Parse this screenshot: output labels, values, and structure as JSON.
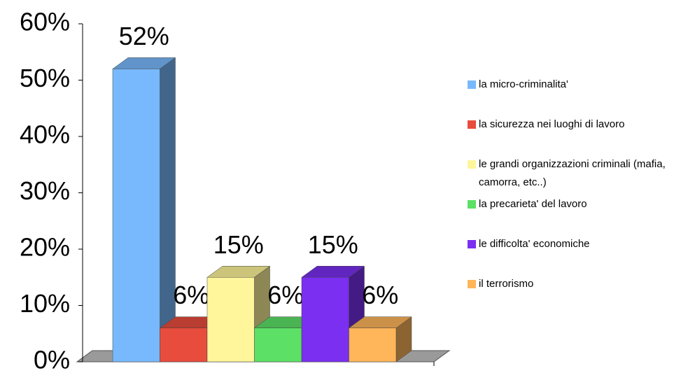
{
  "chart_data": {
    "type": "bar3d",
    "series": [
      {
        "name": "la micro-criminalita'",
        "color": "#78b9fd",
        "values": [
          52
        ],
        "value_labels": [
          "52%"
        ]
      },
      {
        "name": "la sicurezza nei luoghi di lavoro",
        "color": "#e84c3d",
        "values": [
          6
        ],
        "value_labels": [
          "6%"
        ]
      },
      {
        "name": "le grandi organizzazioni criminali (mafia, camorra, etc..)",
        "color": "#fff59a",
        "values": [
          15
        ],
        "value_labels": [
          "15%"
        ]
      },
      {
        "name": "la precarieta' del lavoro",
        "color": "#5ce066",
        "values": [
          6
        ],
        "value_labels": [
          "6%"
        ]
      },
      {
        "name": "le difficolta' economiche",
        "color": "#7b2ff0",
        "values": [
          15
        ],
        "value_labels": [
          "15%"
        ]
      },
      {
        "name": "il terrorismo",
        "color": "#ffb55a",
        "values": [
          6
        ],
        "value_labels": [
          "6%"
        ]
      }
    ],
    "ylim": [
      0,
      60
    ],
    "yticks": [
      {
        "value": 0,
        "label": "0%"
      },
      {
        "value": 10,
        "label": "10%"
      },
      {
        "value": 20,
        "label": "20%"
      },
      {
        "value": 30,
        "label": "30%"
      },
      {
        "value": 40,
        "label": "40%"
      },
      {
        "value": 50,
        "label": "50%"
      },
      {
        "value": 60,
        "label": "60%"
      }
    ],
    "legend": "right"
  }
}
